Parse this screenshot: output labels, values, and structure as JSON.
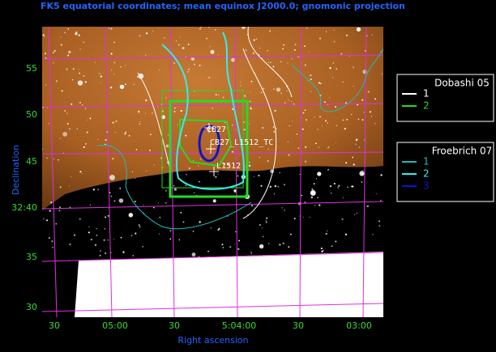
{
  "title": "FK5 equatorial coordinates; mean equinox J2000.0; gnomonic projection",
  "x_axis": {
    "label": "Right ascension",
    "ticks": [
      "30",
      "05:00",
      "30",
      "5:04:00",
      "30",
      "03:00"
    ]
  },
  "y_axis": {
    "label": "Declination",
    "ticks": [
      "55",
      "50",
      "45",
      "32:40",
      "35",
      "30"
    ]
  },
  "legends": [
    {
      "title": "Dobashi 05",
      "entries": [
        {
          "label": "1",
          "color": "#ffffff"
        },
        {
          "label": "2",
          "color": "#22dd22"
        }
      ]
    },
    {
      "title": "Froebrich 07",
      "entries": [
        {
          "label": "1",
          "color": "#22bbbb"
        },
        {
          "label": "2",
          "color": "#33eeee"
        },
        {
          "label": "3",
          "color": "#1111cc"
        }
      ]
    }
  ],
  "annotations": [
    "CB27",
    "CB27_L1512_TC",
    "L1512"
  ]
}
